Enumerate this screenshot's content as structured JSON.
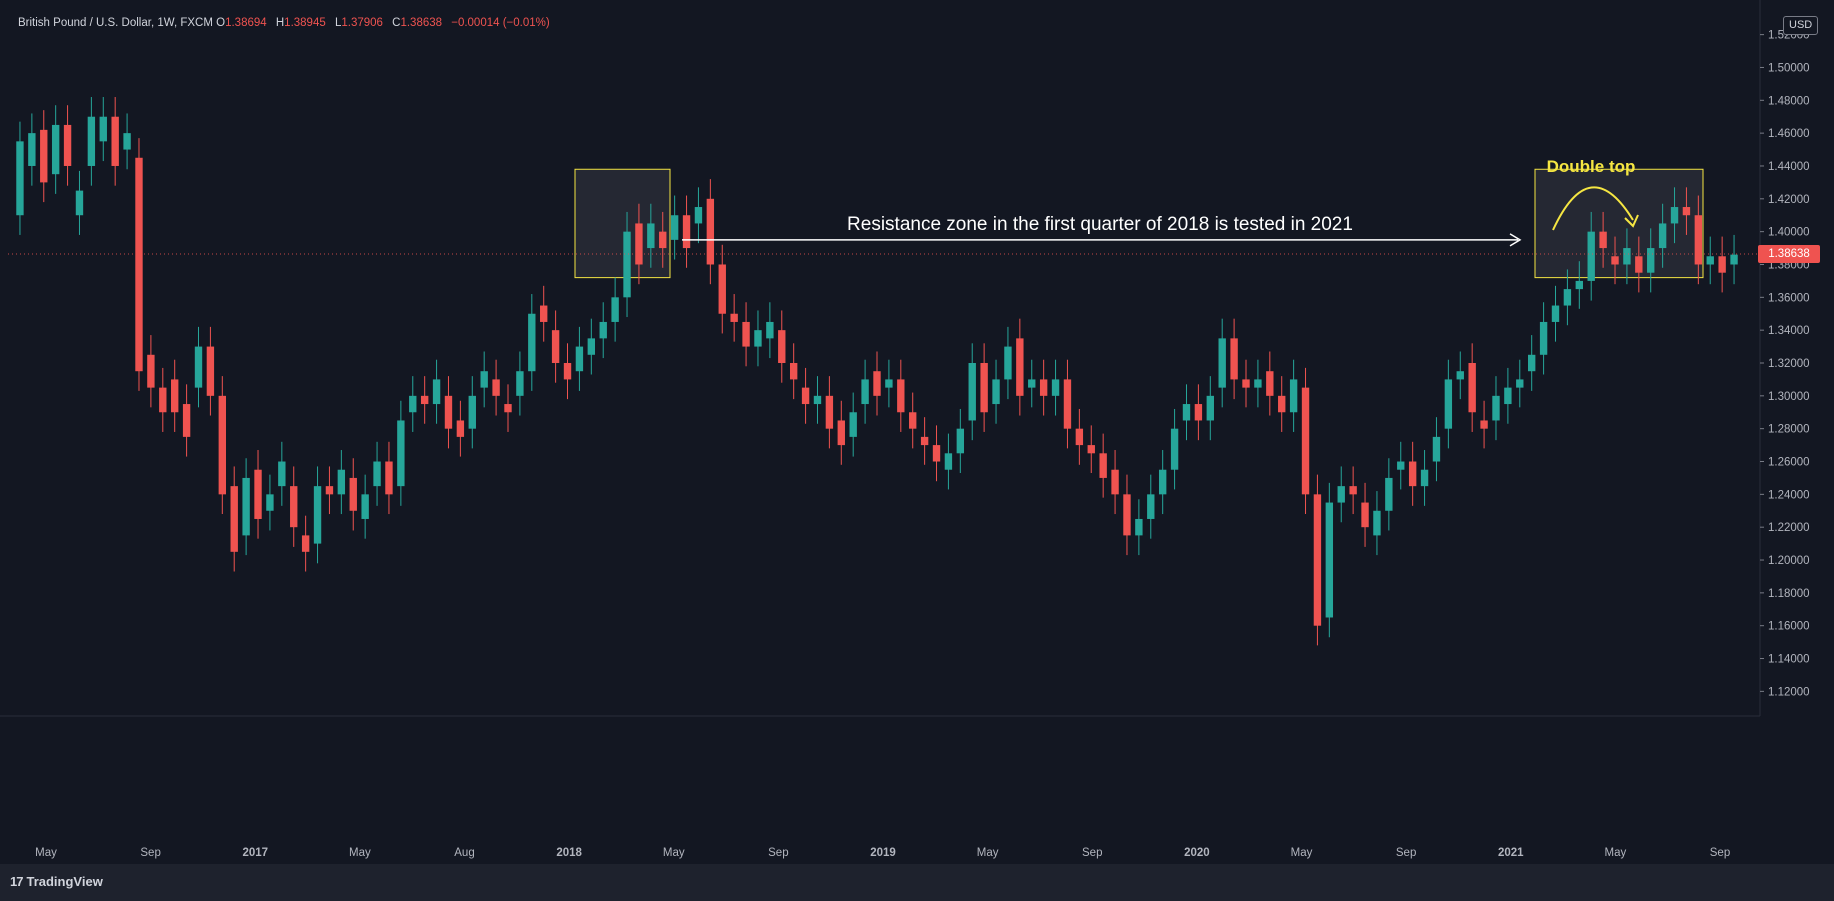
{
  "header": {
    "symbol": "British Pound / U.S. Dollar, 1W, FXCM",
    "open_label": "O",
    "open": "1.38694",
    "high_label": "H",
    "high": "1.38945",
    "low_label": "L",
    "low": "1.37906",
    "close_label": "C",
    "close": "1.38638",
    "change": "−0.00014 (−0.01%)"
  },
  "currency_badge": "USD",
  "last_price": "1.38638",
  "branding": "TradingView",
  "colors": {
    "background": "#131722",
    "up": "#26a69a",
    "down": "#ef5350",
    "annotation_box": "#f5e642",
    "annotation_text": "#f5e642",
    "arrow": "#ffffff"
  },
  "annotations": {
    "arrow_text": "Resistance zone in the first quarter of 2018 is tested in 2021",
    "pattern_text": "Double top"
  },
  "chart_data": {
    "type": "candlestick",
    "instrument": "GBP/USD",
    "interval": "1W",
    "ylim": [
      1.105,
      1.535
    ],
    "y_ticks": [
      "1.12000",
      "1.14000",
      "1.16000",
      "1.18000",
      "1.20000",
      "1.22000",
      "1.24000",
      "1.26000",
      "1.28000",
      "1.30000",
      "1.32000",
      "1.34000",
      "1.36000",
      "1.38000",
      "1.40000",
      "1.42000",
      "1.44000",
      "1.46000",
      "1.48000",
      "1.50000",
      "1.52000"
    ],
    "x_ticks": [
      "May",
      "Sep",
      "2017",
      "May",
      "Aug",
      "2018",
      "May",
      "Sep",
      "2019",
      "May",
      "Sep",
      "2020",
      "May",
      "Sep",
      "2021",
      "May",
      "Sep"
    ],
    "close_path": [
      [
        1.41,
        1.455
      ],
      [
        1.44,
        1.46
      ],
      [
        1.462,
        1.43
      ],
      [
        1.435,
        1.465
      ],
      [
        1.465,
        1.44
      ],
      [
        1.41,
        1.425
      ],
      [
        1.44,
        1.47
      ],
      [
        1.455,
        1.47
      ],
      [
        1.47,
        1.44
      ],
      [
        1.45,
        1.46
      ],
      [
        1.445,
        1.315
      ],
      [
        1.325,
        1.305
      ],
      [
        1.305,
        1.29
      ],
      [
        1.31,
        1.29
      ],
      [
        1.295,
        1.275
      ],
      [
        1.305,
        1.33
      ],
      [
        1.33,
        1.3
      ],
      [
        1.3,
        1.24
      ],
      [
        1.245,
        1.205
      ],
      [
        1.215,
        1.25
      ],
      [
        1.255,
        1.225
      ],
      [
        1.23,
        1.24
      ],
      [
        1.245,
        1.26
      ],
      [
        1.245,
        1.22
      ],
      [
        1.215,
        1.205
      ],
      [
        1.21,
        1.245
      ],
      [
        1.245,
        1.24
      ],
      [
        1.24,
        1.255
      ],
      [
        1.25,
        1.23
      ],
      [
        1.225,
        1.24
      ],
      [
        1.245,
        1.26
      ],
      [
        1.26,
        1.24
      ],
      [
        1.245,
        1.285
      ],
      [
        1.29,
        1.3
      ],
      [
        1.3,
        1.295
      ],
      [
        1.295,
        1.31
      ],
      [
        1.3,
        1.28
      ],
      [
        1.285,
        1.275
      ],
      [
        1.28,
        1.3
      ],
      [
        1.305,
        1.315
      ],
      [
        1.31,
        1.3
      ],
      [
        1.295,
        1.29
      ],
      [
        1.3,
        1.315
      ],
      [
        1.315,
        1.35
      ],
      [
        1.355,
        1.345
      ],
      [
        1.34,
        1.32
      ],
      [
        1.32,
        1.31
      ],
      [
        1.315,
        1.33
      ],
      [
        1.325,
        1.335
      ],
      [
        1.335,
        1.345
      ],
      [
        1.345,
        1.36
      ],
      [
        1.36,
        1.4
      ],
      [
        1.405,
        1.38
      ],
      [
        1.39,
        1.405
      ],
      [
        1.4,
        1.39
      ],
      [
        1.395,
        1.41
      ],
      [
        1.41,
        1.39
      ],
      [
        1.405,
        1.415
      ],
      [
        1.42,
        1.38
      ],
      [
        1.38,
        1.35
      ],
      [
        1.35,
        1.345
      ],
      [
        1.345,
        1.33
      ],
      [
        1.33,
        1.34
      ],
      [
        1.335,
        1.345
      ],
      [
        1.34,
        1.32
      ],
      [
        1.32,
        1.31
      ],
      [
        1.305,
        1.295
      ],
      [
        1.295,
        1.3
      ],
      [
        1.3,
        1.28
      ],
      [
        1.285,
        1.27
      ],
      [
        1.275,
        1.29
      ],
      [
        1.295,
        1.31
      ],
      [
        1.315,
        1.3
      ],
      [
        1.305,
        1.31
      ],
      [
        1.31,
        1.29
      ],
      [
        1.29,
        1.28
      ],
      [
        1.275,
        1.27
      ],
      [
        1.27,
        1.26
      ],
      [
        1.255,
        1.265
      ],
      [
        1.265,
        1.28
      ],
      [
        1.285,
        1.32
      ],
      [
        1.32,
        1.29
      ],
      [
        1.295,
        1.31
      ],
      [
        1.31,
        1.33
      ],
      [
        1.335,
        1.3
      ],
      [
        1.305,
        1.31
      ],
      [
        1.31,
        1.3
      ],
      [
        1.3,
        1.31
      ],
      [
        1.31,
        1.28
      ],
      [
        1.28,
        1.27
      ],
      [
        1.27,
        1.265
      ],
      [
        1.265,
        1.25
      ],
      [
        1.255,
        1.24
      ],
      [
        1.24,
        1.215
      ],
      [
        1.215,
        1.225
      ],
      [
        1.225,
        1.24
      ],
      [
        1.24,
        1.255
      ],
      [
        1.255,
        1.28
      ],
      [
        1.285,
        1.295
      ],
      [
        1.295,
        1.285
      ],
      [
        1.285,
        1.3
      ],
      [
        1.305,
        1.335
      ],
      [
        1.335,
        1.31
      ],
      [
        1.31,
        1.305
      ],
      [
        1.305,
        1.31
      ],
      [
        1.315,
        1.3
      ],
      [
        1.3,
        1.29
      ],
      [
        1.29,
        1.31
      ],
      [
        1.305,
        1.24
      ],
      [
        1.24,
        1.16
      ],
      [
        1.165,
        1.235
      ],
      [
        1.235,
        1.245
      ],
      [
        1.245,
        1.24
      ],
      [
        1.235,
        1.22
      ],
      [
        1.215,
        1.23
      ],
      [
        1.23,
        1.25
      ],
      [
        1.255,
        1.26
      ],
      [
        1.26,
        1.245
      ],
      [
        1.245,
        1.255
      ],
      [
        1.26,
        1.275
      ],
      [
        1.28,
        1.31
      ],
      [
        1.31,
        1.315
      ],
      [
        1.32,
        1.29
      ],
      [
        1.285,
        1.28
      ],
      [
        1.285,
        1.3
      ],
      [
        1.295,
        1.305
      ],
      [
        1.305,
        1.31
      ],
      [
        1.315,
        1.325
      ],
      [
        1.325,
        1.345
      ],
      [
        1.345,
        1.355
      ],
      [
        1.355,
        1.365
      ],
      [
        1.365,
        1.37
      ],
      [
        1.37,
        1.4
      ],
      [
        1.4,
        1.39
      ],
      [
        1.385,
        1.38
      ],
      [
        1.38,
        1.39
      ],
      [
        1.385,
        1.375
      ],
      [
        1.375,
        1.39
      ],
      [
        1.39,
        1.405
      ],
      [
        1.405,
        1.415
      ],
      [
        1.415,
        1.41
      ],
      [
        1.41,
        1.38
      ],
      [
        1.38,
        1.385
      ],
      [
        1.385,
        1.375
      ],
      [
        1.38,
        1.386
      ]
    ]
  }
}
